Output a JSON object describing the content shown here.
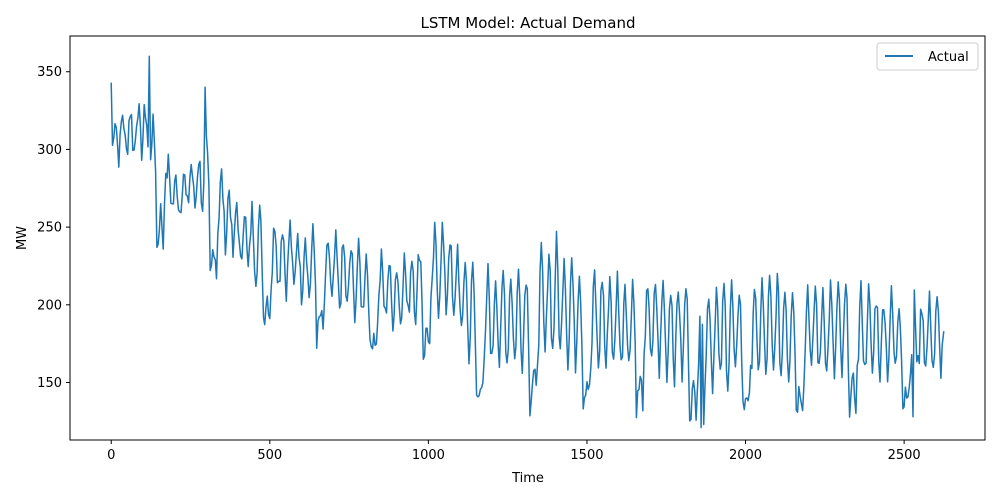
{
  "chart_data": {
    "type": "line",
    "title": "LSTM Model: Actual Demand",
    "xlabel": "Time",
    "ylabel": "MW",
    "xlim": [
      -130,
      2755
    ],
    "ylim": [
      113,
      373
    ],
    "xticks": [
      0,
      500,
      1000,
      1500,
      2000,
      2500
    ],
    "yticks": [
      150,
      200,
      250,
      300,
      350
    ],
    "grid": false,
    "legend": {
      "position": "top-right",
      "entries": [
        "Actual"
      ]
    },
    "colors": {
      "series": "#1f77b4",
      "axes": "#000000"
    },
    "series": [
      {
        "name": "Actual",
        "period": 24,
        "weekday_peak_envelope": [
          [
            0,
            320
          ],
          [
            100,
            330
          ],
          [
            200,
            280
          ],
          [
            300,
            300
          ],
          [
            400,
            265
          ],
          [
            500,
            255
          ],
          [
            700,
            240
          ],
          [
            900,
            225
          ],
          [
            1050,
            250
          ],
          [
            1150,
            220
          ],
          [
            1300,
            220
          ],
          [
            1400,
            240
          ],
          [
            1500,
            220
          ],
          [
            1700,
            215
          ],
          [
            1900,
            210
          ],
          [
            2100,
            215
          ],
          [
            2300,
            210
          ],
          [
            2620,
            200
          ]
        ],
        "weekday_low_envelope": [
          [
            0,
            295
          ],
          [
            100,
            300
          ],
          [
            200,
            260
          ],
          [
            300,
            265
          ],
          [
            400,
            225
          ],
          [
            500,
            215
          ],
          [
            700,
            200
          ],
          [
            900,
            190
          ],
          [
            1050,
            200
          ],
          [
            1150,
            160
          ],
          [
            1300,
            165
          ],
          [
            1400,
            170
          ],
          [
            1500,
            160
          ],
          [
            1700,
            160
          ],
          [
            1900,
            150
          ],
          [
            2100,
            155
          ],
          [
            2300,
            155
          ],
          [
            2620,
            160
          ]
        ],
        "weekly_dip_envelope": [
          [
            0,
            265
          ],
          [
            100,
            245
          ],
          [
            200,
            225
          ],
          [
            300,
            220
          ],
          [
            400,
            200
          ],
          [
            500,
            190
          ],
          [
            700,
            175
          ],
          [
            900,
            165
          ],
          [
            1050,
            170
          ],
          [
            1150,
            140
          ],
          [
            1300,
            135
          ],
          [
            1400,
            140
          ],
          [
            1500,
            140
          ],
          [
            1700,
            135
          ],
          [
            1900,
            130
          ],
          [
            2100,
            135
          ],
          [
            2300,
            135
          ],
          [
            2620,
            135
          ]
        ],
        "notable_points": [
          [
            0,
            343
          ],
          [
            120,
            360
          ],
          [
            295,
            340
          ],
          [
            1860,
            121
          ],
          [
            1870,
            123
          ],
          [
            2530,
            128
          ]
        ],
        "x_end": 2625,
        "last_value": 183
      }
    ]
  }
}
